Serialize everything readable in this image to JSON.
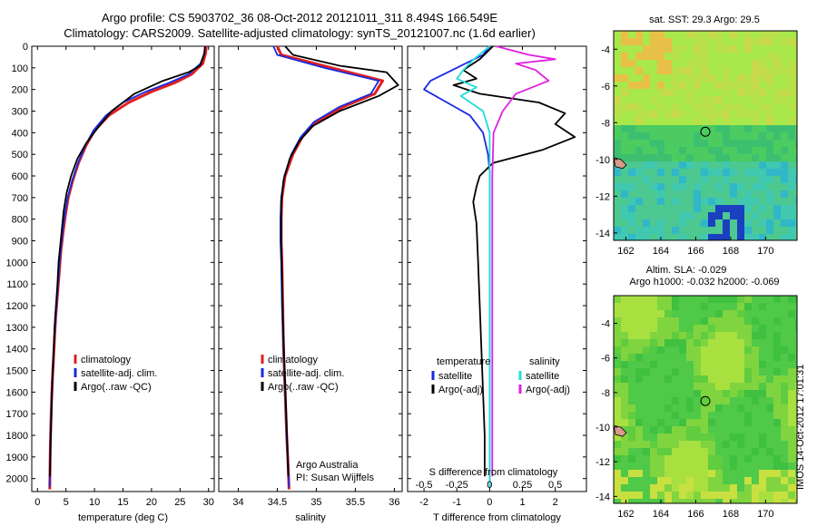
{
  "header": {
    "line1": "Argo profile: CS 5903702_36 08-Oct-2012 20121011_311 8.494S 166.549E",
    "line2": "Climatology: CARS2009. Satellite-adjusted climatology: synTS_20121007.nc (1.6d earlier)"
  },
  "colors": {
    "climatology": "#e02020",
    "satellite": "#1a2ae0",
    "argo": "#000000",
    "satellite_salinity": "#22dddd",
    "argo_salinity": "#e020e0"
  },
  "chart_data": [
    {
      "type": "line",
      "id": "temperature",
      "xlabel": "temperature (deg C)",
      "xlim": [
        -1,
        31
      ],
      "ylim": [
        2060,
        0
      ],
      "xticks": [
        0,
        5,
        10,
        15,
        20,
        25,
        30
      ],
      "yticks": [
        0,
        100,
        200,
        300,
        400,
        500,
        600,
        700,
        800,
        900,
        1000,
        1100,
        1200,
        1300,
        1400,
        1500,
        1600,
        1700,
        1800,
        1900,
        2000
      ],
      "legend": {
        "position": "bottom-right",
        "entries": [
          "climatology",
          "satellite-adj. clim.",
          "Argo(..raw -QC)"
        ]
      },
      "series": [
        {
          "name": "climatology",
          "color": "#e02020",
          "points": [
            [
              29.6,
              0
            ],
            [
              29.5,
              30
            ],
            [
              29.0,
              80
            ],
            [
              27.0,
              130
            ],
            [
              24.0,
              170
            ],
            [
              20.0,
              210
            ],
            [
              16.0,
              260
            ],
            [
              12.5,
              320
            ],
            [
              10.0,
              390
            ],
            [
              8.5,
              460
            ],
            [
              7.2,
              540
            ],
            [
              6.2,
              620
            ],
            [
              5.4,
              700
            ],
            [
              4.9,
              780
            ],
            [
              4.5,
              860
            ],
            [
              4.1,
              950
            ],
            [
              3.8,
              1050
            ],
            [
              3.5,
              1150
            ],
            [
              3.2,
              1250
            ],
            [
              3.0,
              1350
            ],
            [
              2.8,
              1450
            ],
            [
              2.6,
              1550
            ],
            [
              2.45,
              1650
            ],
            [
              2.35,
              1750
            ],
            [
              2.25,
              1850
            ],
            [
              2.2,
              1950
            ],
            [
              2.15,
              2050
            ]
          ]
        },
        {
          "name": "satellite-adj. clim.",
          "color": "#1a2ae0",
          "points": [
            [
              29.4,
              0
            ],
            [
              29.3,
              30
            ],
            [
              28.6,
              80
            ],
            [
              26.5,
              130
            ],
            [
              23.0,
              170
            ],
            [
              19.0,
              210
            ],
            [
              15.0,
              260
            ],
            [
              12.0,
              320
            ],
            [
              9.8,
              390
            ],
            [
              8.4,
              460
            ],
            [
              7.1,
              540
            ],
            [
              6.1,
              620
            ],
            [
              5.3,
              700
            ],
            [
              4.8,
              780
            ],
            [
              4.4,
              860
            ],
            [
              4.05,
              950
            ],
            [
              3.75,
              1050
            ],
            [
              3.45,
              1150
            ],
            [
              3.2,
              1250
            ],
            [
              2.95,
              1350
            ],
            [
              2.75,
              1450
            ],
            [
              2.6,
              1550
            ],
            [
              2.45,
              1650
            ],
            [
              2.35,
              1750
            ],
            [
              2.25,
              1850
            ],
            [
              2.2,
              1950
            ],
            [
              2.15,
              2040
            ]
          ]
        },
        {
          "name": "Argo(..raw -QC)",
          "color": "#000000",
          "points": [
            [
              29.4,
              0
            ],
            [
              29.2,
              40
            ],
            [
              28.5,
              90
            ],
            [
              26.5,
              120
            ],
            [
              22.0,
              160
            ],
            [
              17.0,
              220
            ],
            [
              13.0,
              300
            ],
            [
              10.5,
              380
            ],
            [
              8.5,
              450
            ],
            [
              7.0,
              520
            ],
            [
              5.9,
              600
            ],
            [
              5.1,
              680
            ],
            [
              4.6,
              760
            ],
            [
              4.3,
              840
            ],
            [
              4.0,
              920
            ],
            [
              3.7,
              1000
            ],
            [
              3.5,
              1100
            ],
            [
              3.25,
              1200
            ],
            [
              3.0,
              1300
            ],
            [
              2.85,
              1400
            ],
            [
              2.7,
              1500
            ],
            [
              2.55,
              1600
            ],
            [
              2.45,
              1700
            ],
            [
              2.35,
              1800
            ],
            [
              2.25,
              1900
            ],
            [
              2.2,
              1990
            ]
          ]
        }
      ]
    },
    {
      "type": "line",
      "id": "salinity",
      "xlabel": "salinity",
      "xlim": [
        33.75,
        36.1
      ],
      "ylim": [
        2060,
        0
      ],
      "xticks": [
        34,
        34.5,
        35,
        35.5,
        36
      ],
      "legend": {
        "position": "bottom-right",
        "entries": [
          "climatology",
          "satellite-adj. clim.",
          "Argo(..raw -QC)"
        ]
      },
      "annotation": [
        "Argo Australia",
        "PI: Susan Wijffels"
      ],
      "series": [
        {
          "name": "climatology",
          "color": "#e02020",
          "points": [
            [
              34.5,
              0
            ],
            [
              34.55,
              40
            ],
            [
              35.2,
              100
            ],
            [
              35.85,
              160
            ],
            [
              35.75,
              220
            ],
            [
              35.35,
              280
            ],
            [
              35.0,
              350
            ],
            [
              34.82,
              420
            ],
            [
              34.7,
              500
            ],
            [
              34.6,
              600
            ],
            [
              34.56,
              700
            ],
            [
              34.55,
              800
            ],
            [
              34.55,
              900
            ],
            [
              34.56,
              1000
            ],
            [
              34.57,
              1200
            ],
            [
              34.58,
              1400
            ],
            [
              34.6,
              1600
            ],
            [
              34.62,
              1800
            ],
            [
              34.64,
              1950
            ],
            [
              34.65,
              2050
            ]
          ]
        },
        {
          "name": "satellite-adj. clim.",
          "color": "#1a2ae0",
          "points": [
            [
              34.45,
              0
            ],
            [
              34.5,
              40
            ],
            [
              35.1,
              100
            ],
            [
              35.8,
              160
            ],
            [
              35.7,
              220
            ],
            [
              35.3,
              280
            ],
            [
              34.97,
              350
            ],
            [
              34.8,
              420
            ],
            [
              34.68,
              500
            ],
            [
              34.59,
              600
            ],
            [
              34.55,
              700
            ],
            [
              34.54,
              800
            ],
            [
              34.54,
              900
            ],
            [
              34.55,
              1000
            ],
            [
              34.56,
              1200
            ],
            [
              34.58,
              1400
            ],
            [
              34.6,
              1600
            ],
            [
              34.62,
              1800
            ],
            [
              34.64,
              1950
            ],
            [
              34.65,
              2040
            ]
          ]
        },
        {
          "name": "Argo(..raw -QC)",
          "color": "#000000",
          "points": [
            [
              34.6,
              0
            ],
            [
              34.7,
              40
            ],
            [
              35.3,
              90
            ],
            [
              35.9,
              120
            ],
            [
              36.05,
              180
            ],
            [
              35.8,
              230
            ],
            [
              35.3,
              300
            ],
            [
              34.95,
              370
            ],
            [
              34.78,
              440
            ],
            [
              34.66,
              520
            ],
            [
              34.58,
              620
            ],
            [
              34.55,
              720
            ],
            [
              34.55,
              820
            ],
            [
              34.55,
              920
            ],
            [
              34.56,
              1050
            ],
            [
              34.57,
              1250
            ],
            [
              34.59,
              1450
            ],
            [
              34.61,
              1650
            ],
            [
              34.63,
              1850
            ],
            [
              34.64,
              1990
            ]
          ]
        }
      ]
    },
    {
      "type": "line",
      "id": "difference",
      "xlabel": "T difference from climatology",
      "xlabel_top": "S difference from climatology",
      "xlim": [
        -2.5,
        2.95
      ],
      "ylim": [
        2060,
        0
      ],
      "xticks": [
        -2,
        -1,
        0,
        1,
        2
      ],
      "s_ticks": [
        -0.5,
        -0.25,
        0,
        0.25,
        0.5
      ],
      "s_scale": 4,
      "legend": {
        "position": "bottom",
        "headers": [
          "temperature",
          "salinity"
        ],
        "entries": [
          "satellite",
          "Argo(-adj)",
          "satellite",
          "Argo(-adj)"
        ]
      },
      "series": [
        {
          "name": "satellite",
          "group": "temperature",
          "color": "#1a2ae0",
          "points": [
            [
              0,
              0
            ],
            [
              -0.2,
              40
            ],
            [
              -1.0,
              100
            ],
            [
              -1.8,
              160
            ],
            [
              -2.0,
              200
            ],
            [
              -1.3,
              260
            ],
            [
              -0.6,
              320
            ],
            [
              -0.2,
              400
            ],
            [
              -0.05,
              500
            ],
            [
              0,
              580
            ],
            [
              0,
              700
            ],
            [
              0,
              1000
            ],
            [
              0,
              1500
            ],
            [
              0,
              2040
            ]
          ]
        },
        {
          "name": "Argo(-adj)",
          "group": "temperature",
          "color": "#000000",
          "points": [
            [
              0.1,
              0
            ],
            [
              -0.3,
              60
            ],
            [
              -0.8,
              110
            ],
            [
              -0.4,
              150
            ],
            [
              -1.1,
              180
            ],
            [
              -0.3,
              220
            ],
            [
              1.5,
              260
            ],
            [
              2.3,
              310
            ],
            [
              2.0,
              360
            ],
            [
              2.6,
              420
            ],
            [
              1.6,
              480
            ],
            [
              0.1,
              540
            ],
            [
              -0.3,
              600
            ],
            [
              -0.4,
              650
            ],
            [
              -0.5,
              720
            ],
            [
              -0.4,
              820
            ],
            [
              -0.35,
              1000
            ],
            [
              -0.3,
              1200
            ],
            [
              -0.25,
              1400
            ],
            [
              -0.2,
              1600
            ],
            [
              -0.15,
              1800
            ],
            [
              -0.15,
              1990
            ]
          ]
        },
        {
          "name": "satellite",
          "group": "salinity",
          "color": "#22dddd",
          "points": [
            [
              0,
              0
            ],
            [
              -0.12,
              60
            ],
            [
              -0.2,
              110
            ],
            [
              -0.25,
              150
            ],
            [
              -0.1,
              190
            ],
            [
              -0.22,
              230
            ],
            [
              -0.05,
              300
            ],
            [
              0,
              400
            ],
            [
              0,
              500
            ],
            [
              0,
              800
            ],
            [
              0,
              1200
            ],
            [
              0,
              1600
            ],
            [
              0,
              2040
            ]
          ]
        },
        {
          "name": "Argo(-adj)",
          "group": "salinity",
          "color": "#e020e0",
          "points": [
            [
              0.05,
              0
            ],
            [
              0.3,
              40
            ],
            [
              0.5,
              60
            ],
            [
              0.2,
              80
            ],
            [
              0.35,
              110
            ],
            [
              0.45,
              160
            ],
            [
              0.2,
              220
            ],
            [
              0.1,
              300
            ],
            [
              0.03,
              400
            ],
            [
              0.02,
              600
            ],
            [
              0.02,
              900
            ],
            [
              0.02,
              1200
            ],
            [
              0.02,
              1500
            ],
            [
              0.02,
              1800
            ],
            [
              0.02,
              1990
            ]
          ]
        }
      ]
    }
  ],
  "maps": [
    {
      "id": "sst",
      "title": "sat. SST: 29.3 Argo: 29.5",
      "xticks": [
        162,
        164,
        166,
        168,
        170
      ],
      "yticks": [
        -4,
        -6,
        -8,
        -10,
        -12,
        -14
      ],
      "xlim": [
        161.3,
        171.8
      ],
      "ylim": [
        -14.4,
        -3.0
      ],
      "marker": [
        166.55,
        -8.49
      ]
    },
    {
      "id": "sla",
      "title": "Altim. SLA: -0.029",
      "subtitle": "Argo h1000: -0.032 h2000: -0.069",
      "xticks": [
        162,
        164,
        166,
        168,
        170
      ],
      "yticks": [
        -4,
        -6,
        -8,
        -10,
        -12,
        -14
      ],
      "xlim": [
        161.3,
        171.8
      ],
      "ylim": [
        -14.4,
        -2.4
      ],
      "marker": [
        166.55,
        -8.49
      ]
    }
  ],
  "stamp": "IMOS 14-Oct-2012 17:01:31"
}
